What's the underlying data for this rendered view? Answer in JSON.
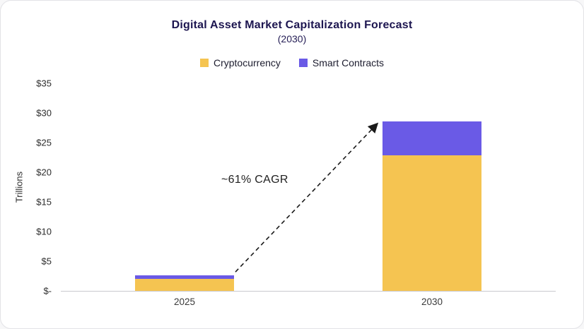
{
  "chart_data": {
    "type": "bar",
    "stacked": true,
    "title": "Digital Asset Market Capitalization Forecast",
    "subtitle": "(2030)",
    "ylabel": "Trillions",
    "categories": [
      "2025",
      "2030"
    ],
    "series": [
      {
        "name": "Cryptocurrency",
        "color": "#F5C451",
        "values": [
          2.0,
          22.8
        ]
      },
      {
        "name": "Smart Contracts",
        "color": "#6A5AE6",
        "values": [
          0.6,
          5.8
        ]
      }
    ],
    "ylim": [
      0,
      35
    ],
    "yticks": [
      {
        "value": 0,
        "label": "$-"
      },
      {
        "value": 5,
        "label": "$5"
      },
      {
        "value": 10,
        "label": "$10"
      },
      {
        "value": 15,
        "label": "$15"
      },
      {
        "value": 20,
        "label": "$20"
      },
      {
        "value": 25,
        "label": "$25"
      },
      {
        "value": 30,
        "label": "$30"
      },
      {
        "value": 35,
        "label": "$35"
      }
    ],
    "grid": false,
    "legend_position": "top",
    "annotation": {
      "text": "~61% CAGR"
    },
    "arrow_color": "#1a1a1a"
  }
}
